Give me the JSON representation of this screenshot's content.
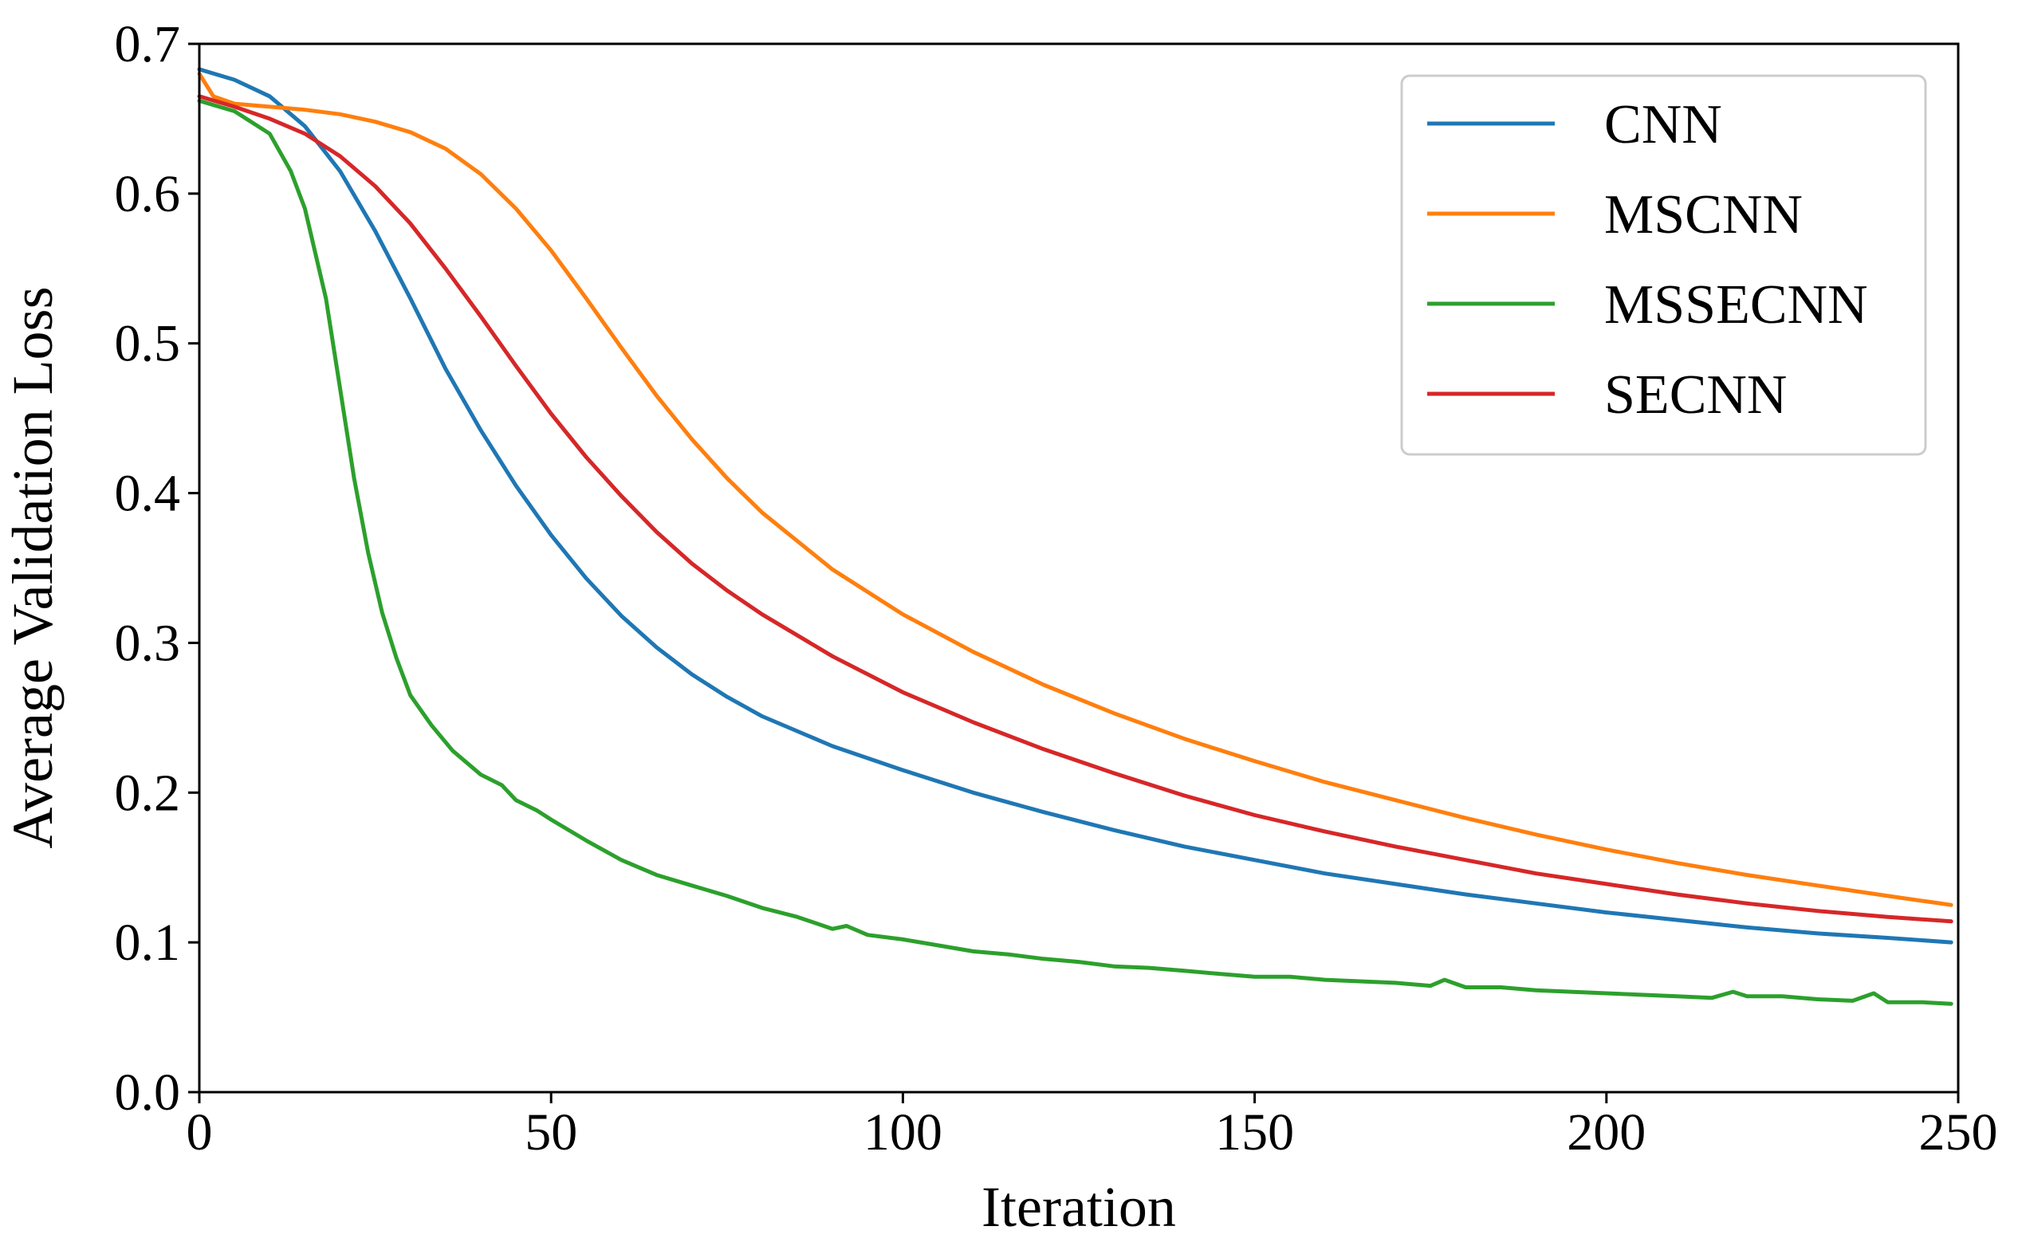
{
  "chart_data": {
    "type": "line",
    "title": "",
    "xlabel": "Iteration",
    "ylabel": "Average Validation Loss",
    "xlim": [
      0,
      250
    ],
    "ylim": [
      0.0,
      0.7
    ],
    "xticks": [
      0,
      50,
      100,
      150,
      200,
      250
    ],
    "xtick_labels": [
      "0",
      "50",
      "100",
      "150",
      "200",
      "250"
    ],
    "yticks": [
      0.0,
      0.1,
      0.2,
      0.3,
      0.4,
      0.5,
      0.6,
      0.7
    ],
    "ytick_labels": [
      "0.0",
      "0.1",
      "0.2",
      "0.3",
      "0.4",
      "0.5",
      "0.6",
      "0.7"
    ],
    "grid": false,
    "legend_position": "top-right",
    "series": [
      {
        "name": "CNN",
        "color": "#1f77b4",
        "x": [
          0,
          5,
          10,
          15,
          20,
          25,
          30,
          35,
          40,
          45,
          50,
          55,
          60,
          65,
          70,
          75,
          80,
          90,
          100,
          110,
          120,
          130,
          140,
          150,
          160,
          170,
          180,
          190,
          200,
          210,
          220,
          230,
          240,
          249
        ],
        "y": [
          0.683,
          0.676,
          0.665,
          0.645,
          0.615,
          0.575,
          0.53,
          0.483,
          0.442,
          0.405,
          0.372,
          0.343,
          0.318,
          0.297,
          0.279,
          0.264,
          0.251,
          0.231,
          0.215,
          0.2,
          0.187,
          0.175,
          0.164,
          0.155,
          0.146,
          0.139,
          0.132,
          0.126,
          0.12,
          0.115,
          0.11,
          0.106,
          0.103,
          0.1
        ]
      },
      {
        "name": "MSCNN",
        "color": "#ff7f0e",
        "x": [
          0,
          2,
          5,
          10,
          15,
          20,
          25,
          30,
          35,
          40,
          45,
          50,
          55,
          60,
          65,
          70,
          75,
          80,
          90,
          100,
          110,
          120,
          130,
          140,
          150,
          160,
          170,
          180,
          190,
          200,
          210,
          220,
          230,
          240,
          249
        ],
        "y": [
          0.68,
          0.665,
          0.66,
          0.658,
          0.656,
          0.653,
          0.648,
          0.641,
          0.63,
          0.613,
          0.59,
          0.562,
          0.53,
          0.497,
          0.465,
          0.436,
          0.41,
          0.387,
          0.349,
          0.319,
          0.294,
          0.272,
          0.253,
          0.236,
          0.221,
          0.207,
          0.195,
          0.183,
          0.172,
          0.162,
          0.153,
          0.145,
          0.138,
          0.131,
          0.125
        ]
      },
      {
        "name": "MSSECNN",
        "color": "#2ca02c",
        "x": [
          0,
          5,
          10,
          13,
          15,
          18,
          20,
          22,
          24,
          26,
          28,
          30,
          33,
          36,
          40,
          43,
          45,
          48,
          50,
          55,
          60,
          65,
          70,
          75,
          80,
          85,
          90,
          92,
          95,
          100,
          105,
          110,
          115,
          120,
          125,
          130,
          135,
          140,
          145,
          150,
          155,
          160,
          165,
          170,
          175,
          177,
          180,
          185,
          190,
          195,
          200,
          205,
          210,
          215,
          218,
          220,
          225,
          230,
          235,
          238,
          240,
          245,
          249
        ],
        "y": [
          0.662,
          0.655,
          0.64,
          0.615,
          0.59,
          0.53,
          0.47,
          0.41,
          0.36,
          0.32,
          0.29,
          0.265,
          0.245,
          0.228,
          0.212,
          0.205,
          0.195,
          0.188,
          0.182,
          0.168,
          0.155,
          0.145,
          0.138,
          0.131,
          0.123,
          0.117,
          0.109,
          0.111,
          0.105,
          0.102,
          0.098,
          0.094,
          0.092,
          0.089,
          0.087,
          0.084,
          0.083,
          0.081,
          0.079,
          0.077,
          0.077,
          0.075,
          0.074,
          0.073,
          0.071,
          0.075,
          0.07,
          0.07,
          0.068,
          0.067,
          0.066,
          0.065,
          0.064,
          0.063,
          0.067,
          0.064,
          0.064,
          0.062,
          0.061,
          0.066,
          0.06,
          0.06,
          0.059
        ]
      },
      {
        "name": "SECNN",
        "color": "#d62728",
        "x": [
          0,
          5,
          10,
          15,
          20,
          25,
          30,
          35,
          40,
          45,
          50,
          55,
          60,
          65,
          70,
          75,
          80,
          90,
          100,
          110,
          120,
          130,
          140,
          150,
          160,
          170,
          180,
          190,
          200,
          210,
          220,
          230,
          240,
          249
        ],
        "y": [
          0.665,
          0.658,
          0.65,
          0.64,
          0.625,
          0.605,
          0.58,
          0.55,
          0.518,
          0.485,
          0.453,
          0.424,
          0.398,
          0.374,
          0.353,
          0.335,
          0.319,
          0.291,
          0.267,
          0.247,
          0.229,
          0.213,
          0.198,
          0.185,
          0.174,
          0.164,
          0.155,
          0.146,
          0.139,
          0.132,
          0.126,
          0.121,
          0.117,
          0.114
        ]
      }
    ]
  }
}
